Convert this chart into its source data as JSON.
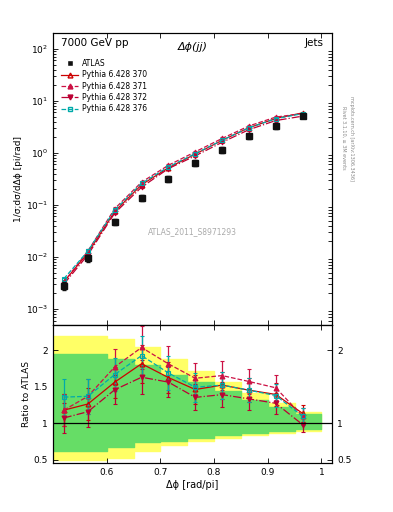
{
  "title_left": "7000 GeV pp",
  "title_right": "Jets",
  "annotation": "Δϕ(jj)",
  "watermark": "ATLAS_2011_S8971293",
  "right_label1": "Rivet 3.1.10, ≥ 3M events",
  "right_label2": "mcplots.cern.ch [arXiv:1306.3436]",
  "ylabel_main": "1/σ;dσ/dΔϕ [pi/rad]",
  "xlabel": "Δϕ [rad/pi]",
  "ylabel_ratio": "Ratio to ATLAS",
  "xlim": [
    0.5,
    1.02
  ],
  "ylim_main": [
    0.0005,
    200.0
  ],
  "ylim_ratio": [
    0.45,
    2.35
  ],
  "atlas_x": [
    0.52,
    0.565,
    0.615,
    0.665,
    0.715,
    0.765,
    0.815,
    0.865,
    0.915,
    0.965
  ],
  "atlas_y": [
    0.0028,
    0.0095,
    0.048,
    0.135,
    0.32,
    0.65,
    1.15,
    2.1,
    3.3,
    5.2
  ],
  "atlas_yerr": [
    0.0005,
    0.0015,
    0.006,
    0.018,
    0.04,
    0.08,
    0.13,
    0.22,
    0.35,
    0.5
  ],
  "py370_x": [
    0.52,
    0.565,
    0.615,
    0.665,
    0.715,
    0.765,
    0.815,
    0.865,
    0.915,
    0.965
  ],
  "py370_y": [
    0.0033,
    0.012,
    0.075,
    0.245,
    0.52,
    0.95,
    1.75,
    3.05,
    4.6,
    5.9
  ],
  "py370_yerr": [
    0.0002,
    0.001,
    0.004,
    0.012,
    0.025,
    0.045,
    0.08,
    0.13,
    0.2,
    0.25
  ],
  "py371_x": [
    0.52,
    0.565,
    0.615,
    0.665,
    0.715,
    0.765,
    0.815,
    0.865,
    0.915,
    0.965
  ],
  "py371_y": [
    0.0033,
    0.013,
    0.085,
    0.275,
    0.58,
    1.05,
    1.9,
    3.3,
    4.9,
    5.7
  ],
  "py371_yerr": [
    0.0002,
    0.001,
    0.005,
    0.014,
    0.028,
    0.05,
    0.09,
    0.14,
    0.21,
    0.24
  ],
  "py372_x": [
    0.52,
    0.565,
    0.615,
    0.665,
    0.715,
    0.765,
    0.815,
    0.865,
    0.915,
    0.965
  ],
  "py372_y": [
    0.003,
    0.011,
    0.07,
    0.22,
    0.5,
    0.88,
    1.6,
    2.8,
    4.2,
    5.1
  ],
  "py372_yerr": [
    0.0002,
    0.001,
    0.004,
    0.011,
    0.024,
    0.042,
    0.075,
    0.12,
    0.18,
    0.22
  ],
  "py376_x": [
    0.52,
    0.565,
    0.615,
    0.665,
    0.715,
    0.765,
    0.815,
    0.865,
    0.915,
    0.965
  ],
  "py376_y": [
    0.0038,
    0.013,
    0.08,
    0.26,
    0.54,
    0.97,
    1.75,
    3.05,
    4.55,
    5.7
  ],
  "py376_yerr": [
    0.0002,
    0.001,
    0.004,
    0.013,
    0.026,
    0.046,
    0.082,
    0.13,
    0.2,
    0.24
  ],
  "yellow_band_edges": [
    0.5,
    0.55,
    0.6,
    0.65,
    0.7,
    0.75,
    0.8,
    0.85,
    0.9,
    0.95,
    1.0
  ],
  "yellow_band_lo": [
    0.5,
    0.5,
    0.52,
    0.62,
    0.7,
    0.76,
    0.8,
    0.84,
    0.87,
    0.9,
    0.93
  ],
  "yellow_band_hi": [
    2.2,
    2.2,
    2.15,
    2.05,
    1.88,
    1.72,
    1.56,
    1.42,
    1.28,
    1.16,
    1.08
  ],
  "green_band_edges": [
    0.5,
    0.55,
    0.6,
    0.65,
    0.7,
    0.75,
    0.8,
    0.85,
    0.9,
    0.95,
    1.0
  ],
  "green_band_lo": [
    0.62,
    0.62,
    0.68,
    0.74,
    0.76,
    0.8,
    0.84,
    0.87,
    0.89,
    0.92,
    0.95
  ],
  "green_band_hi": [
    1.95,
    1.95,
    1.88,
    1.8,
    1.66,
    1.56,
    1.44,
    1.32,
    1.22,
    1.12,
    1.05
  ],
  "color_py370": "#cc0000",
  "color_py371": "#cc1144",
  "color_py372": "#bb0033",
  "color_py376": "#00aaaa",
  "color_atlas": "#111111",
  "color_yellow": "#ffff66",
  "color_green": "#66dd66",
  "legend_labels": [
    "ATLAS",
    "Pythia 6.428 370",
    "Pythia 6.428 371",
    "Pythia 6.428 372",
    "Pythia 6.428 376"
  ]
}
